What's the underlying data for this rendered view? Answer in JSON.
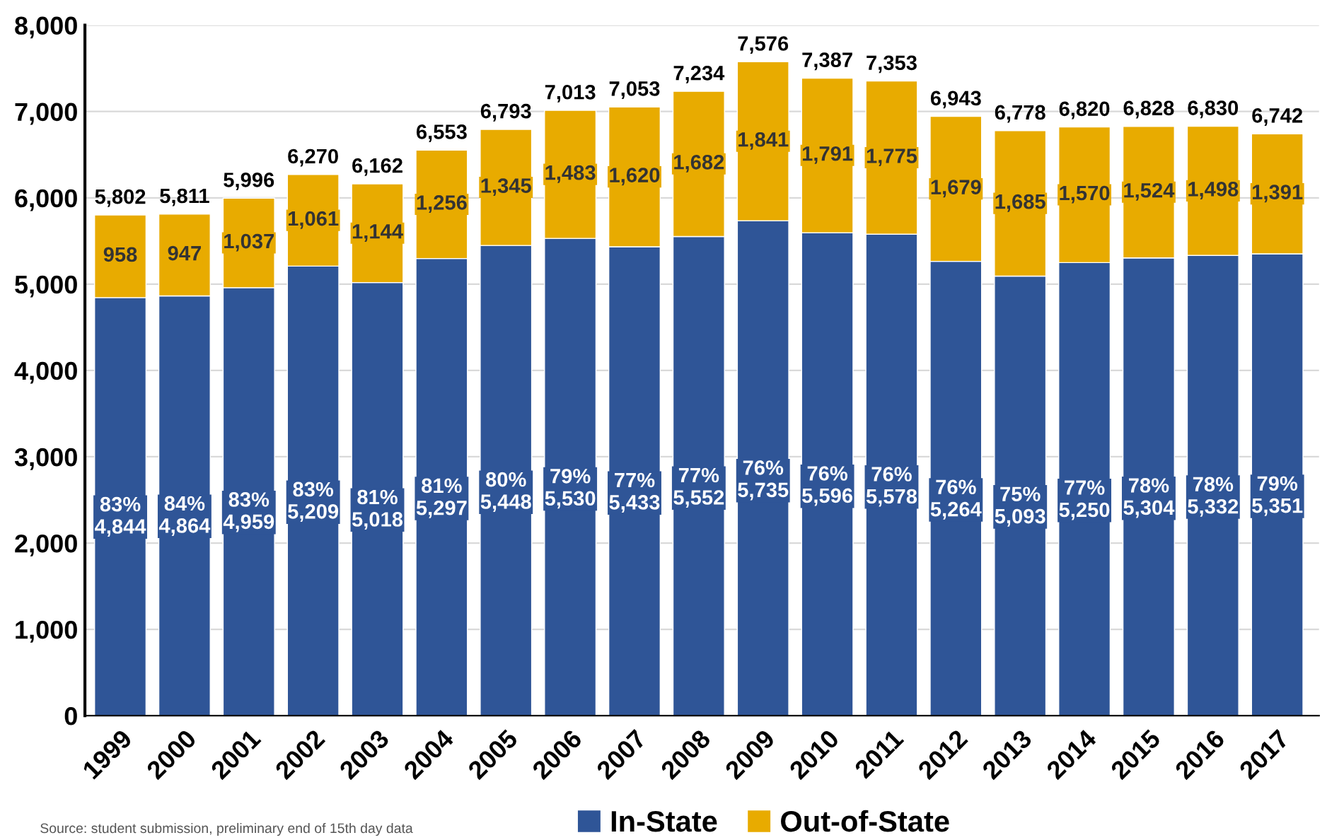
{
  "chart_data": {
    "type": "bar",
    "stacked": true,
    "categories": [
      "1999",
      "2000",
      "2001",
      "2002",
      "2003",
      "2004",
      "2005",
      "2006",
      "2007",
      "2008",
      "2009",
      "2010",
      "2011",
      "2012",
      "2013",
      "2014",
      "2015",
      "2016",
      "2017"
    ],
    "series": [
      {
        "name": "In-State",
        "color": "#2f5597",
        "values": [
          4844,
          4864,
          4959,
          5209,
          5018,
          5297,
          5448,
          5530,
          5433,
          5552,
          5735,
          5596,
          5578,
          5264,
          5093,
          5250,
          5304,
          5332,
          5351
        ],
        "value_labels": [
          "83%\n4,844",
          "84%\n4,864",
          "83%\n4,959",
          "83%\n5,209",
          "81%\n5,018",
          "81%\n5,297",
          "80%\n5,448",
          "79%\n5,530",
          "77%\n5,433",
          "77%\n5,552",
          "76%\n5,735",
          "76%\n5,596",
          "76%\n5,578",
          "76%\n5,264",
          "75%\n5,093",
          "77%\n5,250",
          "78%\n5,304",
          "78%\n5,332",
          "79%\n5,351"
        ]
      },
      {
        "name": "Out-of-State",
        "color": "#e8ab00",
        "values": [
          958,
          947,
          1037,
          1061,
          1144,
          1256,
          1345,
          1483,
          1620,
          1682,
          1841,
          1791,
          1775,
          1679,
          1685,
          1570,
          1524,
          1498,
          1391
        ],
        "value_labels": [
          "958",
          "947",
          "1,037",
          "1,061",
          "1,144",
          "1,256",
          "1,345",
          "1,483",
          "1,620",
          "1,682",
          "1,841",
          "1,791",
          "1,775",
          "1,679",
          "1,685",
          "1,570",
          "1,524",
          "1,498",
          "1,391"
        ]
      }
    ],
    "totals": [
      "5,802",
      "5,811",
      "5,996",
      "6,270",
      "6,162",
      "6,553",
      "6,793",
      "7,013",
      "7,053",
      "7,234",
      "7,576",
      "7,387",
      "7,353",
      "6,943",
      "6,778",
      "6,820",
      "6,828",
      "6,830",
      "6,742"
    ],
    "ylim": [
      0,
      8000
    ],
    "yticks": [
      {
        "value": 0,
        "label": "0"
      },
      {
        "value": 1000,
        "label": "1,000"
      },
      {
        "value": 2000,
        "label": "2,000"
      },
      {
        "value": 3000,
        "label": "3,000"
      },
      {
        "value": 4000,
        "label": "4,000"
      },
      {
        "value": 5000,
        "label": "5,000"
      },
      {
        "value": 6000,
        "label": "6,000"
      },
      {
        "value": 7000,
        "label": "7,000"
      },
      {
        "value": 8000,
        "label": "8,000"
      }
    ],
    "grid": "y",
    "legend": "bottom",
    "annotations": [
      "Source: student submission, preliminary end of 15th day data"
    ]
  }
}
